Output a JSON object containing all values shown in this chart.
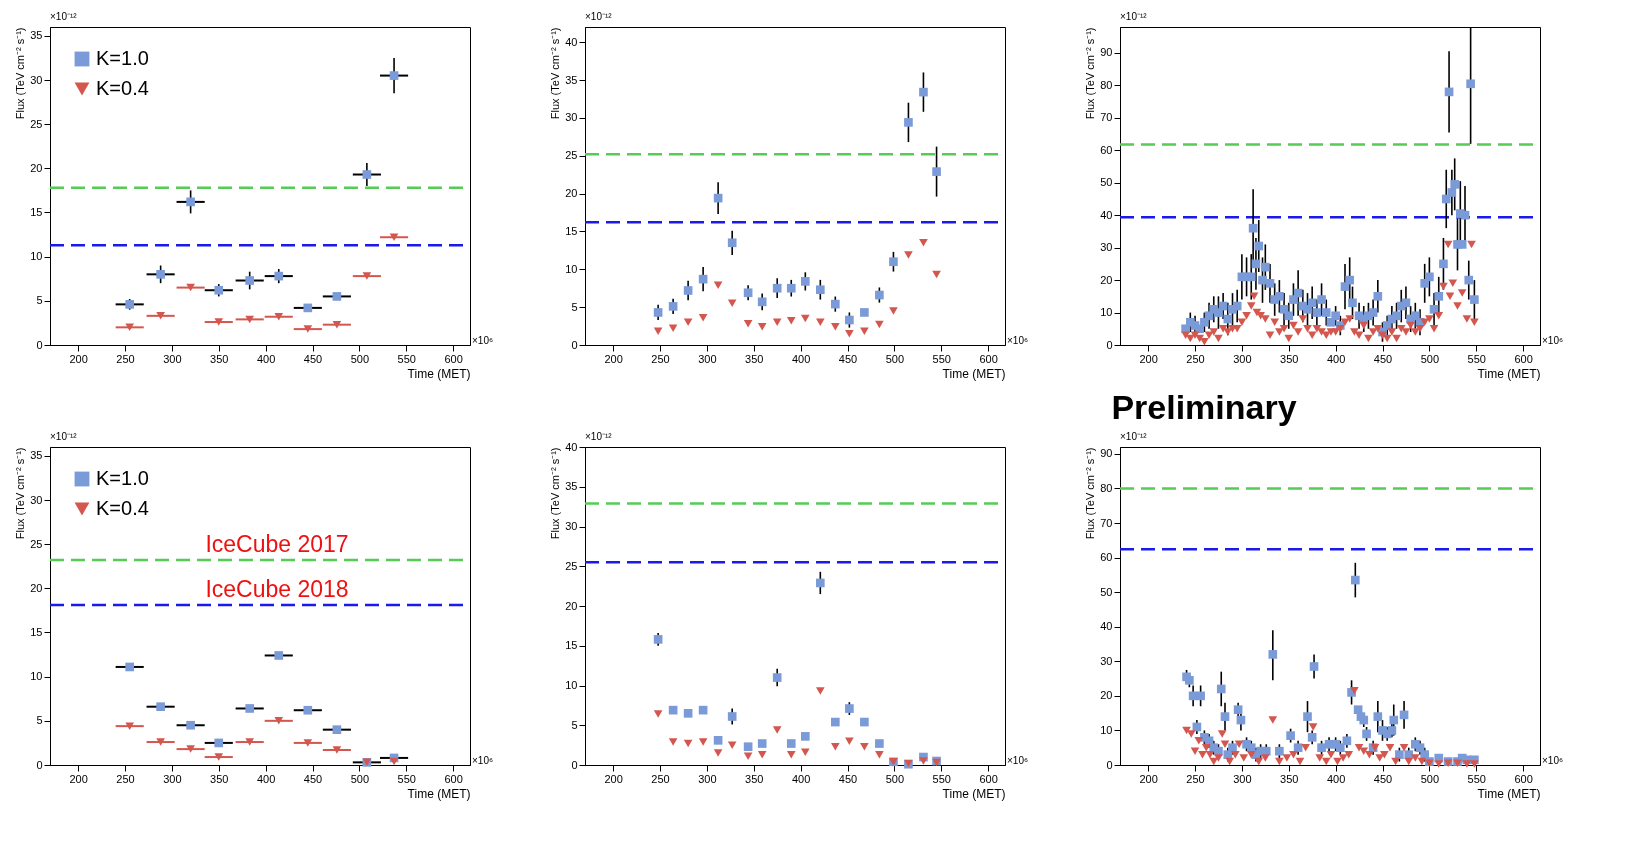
{
  "chart_data": [
    {
      "type": "scatter",
      "xlabel": "Time (MET)",
      "ylabel": "Flux (TeV cm⁻² s⁻¹)",
      "xlim": [
        170,
        618
      ],
      "xticks": [
        200,
        250,
        300,
        350,
        400,
        450,
        500,
        550,
        600
      ],
      "ylim": [
        0,
        36
      ],
      "yticks": [
        0,
        5,
        10,
        15,
        20,
        25,
        30,
        35
      ],
      "legend": "top left",
      "annotations": [
        "×10⁻¹²",
        "×10⁶"
      ],
      "x": [
        255,
        288,
        320,
        350,
        383,
        414,
        445,
        476,
        508,
        537
      ],
      "series": [
        {
          "name": "K=1.0",
          "color": "#7b9bd8",
          "marker": "square",
          "values": [
            4.6,
            8.0,
            16.2,
            6.2,
            7.3,
            7.8,
            4.2,
            5.5,
            19.3,
            30.5
          ],
          "errors": [
            0.6,
            1,
            1.3,
            0.7,
            1,
            0.8,
            null,
            null,
            1.3,
            2
          ],
          "xerrors": [
            15,
            15,
            15,
            15,
            15,
            15,
            15,
            15,
            15,
            15
          ]
        },
        {
          "name": "K=0.4",
          "color": "#d4574f",
          "marker": "triangle",
          "values": [
            2.0,
            3.3,
            6.5,
            2.6,
            2.9,
            3.2,
            1.8,
            2.3,
            7.8,
            12.2
          ],
          "xerrors": [
            15,
            15,
            15,
            15,
            15,
            15,
            15,
            15,
            15,
            15
          ]
        }
      ],
      "ref_lines": [
        {
          "axis": "y",
          "value": 17.8,
          "color": "#55cc55",
          "line_style": "dashed"
        },
        {
          "axis": "y",
          "value": 11.3,
          "color": "#1a1aee",
          "line_style": "dashed"
        }
      ]
    },
    {
      "type": "scatter",
      "xlabel": "Time (MET)",
      "ylabel": "Flux (TeV cm⁻² s⁻¹)",
      "xlim": [
        170,
        618
      ],
      "xticks": [
        200,
        250,
        300,
        350,
        400,
        450,
        500,
        550,
        600
      ],
      "ylim": [
        0,
        42
      ],
      "yticks": [
        0,
        5,
        10,
        15,
        20,
        25,
        30,
        35,
        40
      ],
      "annotations": [
        "×10⁻¹²",
        "×10⁶"
      ],
      "x": [
        248,
        264,
        280,
        296,
        312,
        327,
        344,
        359,
        375,
        390,
        405,
        421,
        437,
        452,
        468,
        484,
        499,
        515,
        531,
        545
      ],
      "series": [
        {
          "color": "#7b9bd8",
          "marker": "square",
          "values": [
            4.3,
            5.1,
            7.2,
            8.7,
            19.4,
            13.5,
            6.9,
            5.7,
            7.5,
            7.5,
            8.4,
            7.3,
            5.4,
            3.3,
            4.3,
            6.6,
            11.0,
            29.4,
            33.4,
            22.9
          ],
          "errors": [
            1,
            1,
            1.3,
            1.6,
            2.1,
            1.6,
            1,
            1.1,
            1.3,
            1.1,
            1.2,
            1.3,
            1,
            1,
            null,
            1,
            1.3,
            2.6,
            2.6,
            3.3
          ]
        },
        {
          "color": "#d4574f",
          "marker": "triangle",
          "values": [
            1.8,
            2.2,
            3.0,
            3.6,
            7.9,
            5.5,
            2.8,
            2.4,
            3.0,
            3.2,
            3.5,
            3.0,
            2.4,
            1.5,
            1.8,
            2.7,
            4.5,
            11.9,
            13.5,
            9.3
          ]
        }
      ],
      "ref_lines": [
        {
          "axis": "y",
          "value": 25.2,
          "color": "#55cc55",
          "line_style": "dashed"
        },
        {
          "axis": "y",
          "value": 16.2,
          "color": "#1a1aee",
          "line_style": "dashed"
        }
      ]
    },
    {
      "type": "scatter",
      "xlabel": "Time (MET)",
      "ylabel": "Flux (TeV cm⁻² s⁻¹)",
      "xlim": [
        170,
        618
      ],
      "xticks": [
        200,
        250,
        300,
        350,
        400,
        450,
        500,
        550,
        600
      ],
      "ylim": [
        0,
        98
      ],
      "yticks": [
        0,
        10,
        20,
        30,
        40,
        50,
        60,
        70,
        80,
        90
      ],
      "annotations": [
        "×10⁻¹²",
        "×10⁶",
        "Preliminary"
      ],
      "series": [
        {
          "color": "#7b9bd8",
          "marker": "square",
          "x": [
            240,
            245,
            250,
            255,
            260,
            265,
            270,
            275,
            280,
            285,
            290,
            295,
            300,
            305,
            310,
            312,
            315,
            318,
            322,
            325,
            330,
            335,
            340,
            345,
            350,
            355,
            360,
            365,
            370,
            375,
            380,
            385,
            390,
            395,
            400,
            405,
            410,
            415,
            418,
            425,
            430,
            435,
            440,
            445,
            450,
            455,
            460,
            465,
            470,
            475,
            480,
            485,
            490,
            495,
            500,
            505,
            510,
            515,
            518,
            521,
            524,
            527,
            530,
            533,
            535,
            538,
            542,
            544,
            548
          ],
          "values": [
            5,
            7,
            6,
            5,
            7,
            9,
            11,
            10,
            12,
            8,
            11,
            12,
            21,
            21,
            21,
            36,
            25,
            30.5,
            20,
            24,
            19,
            14,
            15,
            11,
            9,
            14,
            16,
            12,
            11,
            13,
            10,
            14,
            10,
            7,
            9,
            6,
            18,
            20,
            13,
            9,
            8,
            9,
            10,
            15,
            4,
            6,
            8,
            9,
            12,
            13,
            8,
            9,
            7,
            19,
            21,
            11,
            15,
            25,
            45,
            78,
            47,
            49.5,
            31,
            40.5,
            31,
            40,
            20,
            80.5,
            14
          ],
          "errors": [
            null,
            3,
            3,
            null,
            3,
            4,
            4,
            5,
            4,
            5,
            5,
            5,
            7,
            6,
            7,
            12,
            8,
            8,
            7,
            7,
            6,
            5,
            5,
            5,
            4,
            5,
            7,
            5,
            5,
            5,
            4,
            5,
            4,
            null,
            3,
            3,
            7,
            7,
            5,
            4,
            4,
            4,
            4,
            5,
            3,
            3,
            4,
            4,
            5,
            5,
            4,
            4,
            4,
            6,
            6,
            5,
            6,
            8,
            9,
            12.5,
            7,
            8,
            8,
            10,
            null,
            9,
            6,
            [
              62,
              98
            ],
            6
          ]
        },
        {
          "color": "#d4574f",
          "marker": "triangle",
          "x": [
            240,
            245,
            250,
            255,
            260,
            265,
            270,
            275,
            280,
            285,
            290,
            295,
            300,
            305,
            310,
            313,
            316,
            320,
            325,
            330,
            335,
            340,
            345,
            350,
            355,
            360,
            365,
            370,
            375,
            380,
            385,
            390,
            395,
            400,
            405,
            410,
            415,
            420,
            425,
            430,
            435,
            440,
            445,
            450,
            455,
            460,
            465,
            470,
            475,
            480,
            485,
            490,
            495,
            500,
            505,
            510,
            515,
            520,
            522,
            525,
            530,
            535,
            540,
            545,
            548
          ],
          "values": [
            3,
            2,
            3,
            2,
            1,
            3,
            4,
            2,
            5,
            4,
            5,
            5,
            7,
            9,
            12,
            15,
            10,
            9,
            8,
            3,
            7,
            4,
            5,
            2,
            6,
            4,
            8,
            5,
            3,
            5,
            4,
            3,
            4,
            4,
            5,
            7,
            8,
            4,
            3,
            6,
            2,
            4,
            5,
            3,
            2,
            4,
            2,
            5,
            4,
            6,
            4,
            5,
            7,
            8,
            5,
            9,
            18,
            31,
            15,
            19,
            12,
            16,
            8,
            31,
            7
          ]
        }
      ],
      "ref_lines": [
        {
          "axis": "y",
          "value": 61.8,
          "color": "#55cc55",
          "line_style": "dashed"
        },
        {
          "axis": "y",
          "value": 39.4,
          "color": "#1a1aee",
          "line_style": "dashed"
        }
      ]
    },
    {
      "type": "scatter",
      "xlabel": "Time (MET)",
      "ylabel": "Flux (TeV cm⁻² s⁻¹)",
      "xlim": [
        170,
        618
      ],
      "xticks": [
        200,
        250,
        300,
        350,
        400,
        450,
        500,
        550,
        600
      ],
      "ylim": [
        0,
        36
      ],
      "yticks": [
        0,
        5,
        10,
        15,
        20,
        25,
        30,
        35
      ],
      "legend": "top left",
      "annotations": [
        "×10⁻¹²",
        "×10⁶"
      ],
      "x": [
        255,
        288,
        320,
        350,
        383,
        414,
        445,
        476,
        508,
        537
      ],
      "series": [
        {
          "name": "K=1.0",
          "color": "#7b9bd8",
          "marker": "square",
          "values": [
            11.1,
            6.6,
            4.5,
            2.5,
            6.4,
            12.4,
            6.2,
            4.0,
            0.3,
            0.8
          ],
          "xerrors": [
            15,
            15,
            15,
            15,
            15,
            15,
            15,
            15,
            15,
            15
          ]
        },
        {
          "name": "K=0.4",
          "color": "#d4574f",
          "marker": "triangle",
          "values": [
            4.4,
            2.6,
            1.8,
            0.9,
            2.6,
            5.0,
            2.5,
            1.7,
            0.3,
            0.4
          ],
          "xerrors": [
            15,
            15,
            15,
            15,
            15,
            15,
            15,
            15,
            null,
            null
          ]
        }
      ],
      "ref_lines": [
        {
          "axis": "y",
          "value": 23.2,
          "color": "#55cc55",
          "line_style": "dashed",
          "label": "IceCube 2017"
        },
        {
          "axis": "y",
          "value": 18.1,
          "color": "#1a1aee",
          "line_style": "dashed",
          "label": "IceCube 2018"
        }
      ]
    },
    {
      "type": "scatter",
      "xlabel": "Time (MET)",
      "ylabel": "Flux (TeV cm⁻² s⁻¹)",
      "xlim": [
        170,
        618
      ],
      "xticks": [
        200,
        250,
        300,
        350,
        400,
        450,
        500,
        550,
        600
      ],
      "ylim": [
        0,
        40
      ],
      "yticks": [
        0,
        5,
        10,
        15,
        20,
        25,
        30,
        35,
        40
      ],
      "annotations": [
        "×10⁻¹²",
        "×10⁶"
      ],
      "x": [
        248,
        264,
        280,
        296,
        312,
        327,
        344,
        359,
        375,
        390,
        405,
        421,
        437,
        452,
        468,
        484,
        499,
        515,
        531,
        545
      ],
      "series": [
        {
          "color": "#7b9bd8",
          "marker": "square",
          "values": [
            15.8,
            6.9,
            6.5,
            6.9,
            3.1,
            6.1,
            2.3,
            2.7,
            11.0,
            2.7,
            3.6,
            22.9,
            5.4,
            7.1,
            5.4,
            2.7,
            0.4,
            0.1,
            1.0,
            0.5
          ],
          "errors": [
            0.8,
            null,
            null,
            null,
            null,
            1,
            null,
            null,
            1.1,
            null,
            null,
            1.4,
            null,
            0.8,
            null,
            null,
            null,
            null,
            null,
            null
          ]
        },
        {
          "color": "#d4574f",
          "marker": "triangle",
          "values": [
            6.4,
            2.9,
            2.7,
            2.9,
            1.5,
            2.5,
            1.1,
            1.3,
            4.4,
            1.3,
            1.6,
            9.3,
            2.3,
            3.0,
            2.3,
            1.3,
            0.4,
            0.2,
            0.5,
            0.3
          ]
        }
      ],
      "ref_lines": [
        {
          "axis": "y",
          "value": 32.9,
          "color": "#55cc55",
          "line_style": "dashed"
        },
        {
          "axis": "y",
          "value": 25.5,
          "color": "#1a1aee",
          "line_style": "dashed"
        }
      ]
    },
    {
      "type": "scatter",
      "xlabel": "Time (MET)",
      "ylabel": "Flux (TeV cm⁻² s⁻¹)",
      "xlim": [
        170,
        618
      ],
      "xticks": [
        200,
        250,
        300,
        350,
        400,
        450,
        500,
        550,
        600
      ],
      "ylim": [
        0,
        92
      ],
      "yticks": [
        0,
        10,
        20,
        30,
        40,
        50,
        60,
        70,
        80,
        90
      ],
      "annotations": [
        "×10⁻¹²",
        "×10⁶"
      ],
      "series": [
        {
          "color": "#7b9bd8",
          "marker": "square",
          "x": [
            241,
            244,
            248,
            252,
            256,
            260,
            265,
            270,
            275,
            278,
            282,
            285,
            290,
            296,
            299,
            305,
            310,
            315,
            320,
            326,
            333,
            340,
            352,
            360,
            370,
            375,
            377,
            385,
            393,
            400,
            405,
            412,
            417,
            421,
            424,
            427,
            430,
            433,
            440,
            445,
            450,
            455,
            460,
            462,
            468,
            473,
            478,
            485,
            490,
            495,
            500,
            510,
            520,
            530,
            535,
            540,
            548
          ],
          "values": [
            25.5,
            24.5,
            20,
            11,
            20,
            8,
            7,
            5,
            4,
            22,
            14,
            3,
            5,
            16,
            13,
            6,
            5,
            3,
            4,
            4,
            32,
            4,
            8.5,
            5,
            14,
            8,
            28.5,
            5,
            6,
            6,
            5,
            7,
            21,
            53.5,
            16,
            14,
            13,
            9,
            5,
            14,
            10,
            9,
            10,
            13,
            3,
            14.5,
            3,
            6,
            5,
            3,
            1,
            2,
            1,
            1,
            2,
            1.5,
            1.5
          ],
          "errors": [
            2,
            2,
            3,
            2,
            3,
            2,
            2,
            2,
            2,
            5,
            4,
            2,
            2,
            2,
            3,
            2,
            2,
            2,
            2,
            2,
            [
              24.5,
              39
            ],
            2,
            2,
            2,
            4.5,
            2,
            [
              25,
              32
            ],
            2,
            2,
            2,
            2,
            2,
            3.5,
            5,
            null,
            null,
            2,
            2,
            2,
            4.5,
            3,
            2,
            2,
            4.5,
            2,
            4,
            2,
            2,
            2,
            2,
            null,
            null,
            null,
            null,
            null,
            null,
            null
          ]
        },
        {
          "color": "#d4574f",
          "marker": "triangle",
          "x": [
            241,
            246,
            250,
            254,
            258,
            262,
            266,
            270,
            275,
            279,
            282,
            287,
            293,
            297,
            302,
            310,
            318,
            325,
            333,
            340,
            348,
            355,
            362,
            368,
            376,
            383,
            390,
            395,
            402,
            408,
            414,
            420,
            425,
            430,
            436,
            442,
            447,
            452,
            458,
            464,
            473,
            478,
            485,
            492,
            500,
            510,
            520,
            530,
            540,
            548
          ],
          "values": [
            10,
            9,
            4,
            7,
            3,
            5,
            3,
            1,
            2,
            9,
            6,
            1,
            3,
            6,
            2,
            3,
            1,
            2,
            13,
            1,
            2,
            3,
            1,
            5,
            11,
            2,
            1,
            3,
            1,
            2,
            3,
            21.5,
            5,
            4,
            3,
            5,
            2,
            3,
            5,
            1,
            5,
            1,
            2,
            1,
            0.5,
            0.3,
            0.5,
            0.5,
            0.3,
            0.3
          ]
        }
      ],
      "ref_lines": [
        {
          "axis": "y",
          "value": 80.0,
          "color": "#55cc55",
          "line_style": "dashed"
        },
        {
          "axis": "y",
          "value": 62.4,
          "color": "#1a1aee",
          "line_style": "dashed"
        }
      ]
    }
  ]
}
